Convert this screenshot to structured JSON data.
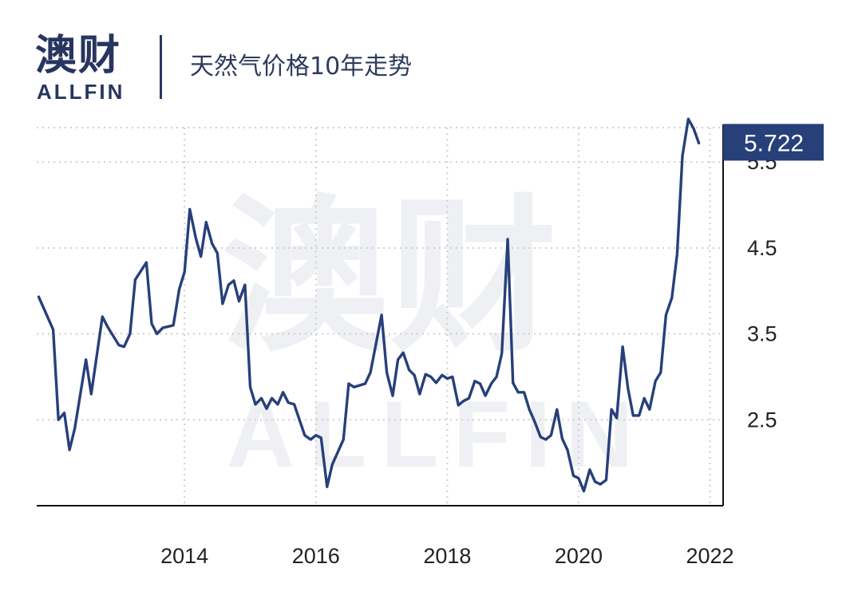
{
  "header": {
    "logo_cn": "澳财",
    "logo_en": "ALLFIN",
    "title": "天然气价格10年走势"
  },
  "watermark": {
    "cn": "澳财",
    "en": "ALLFIN"
  },
  "colors": {
    "line": "#27407a",
    "brand": "#27355f",
    "grid": "#cfcfcf",
    "badge": "#27407a"
  },
  "chart_data": {
    "type": "line",
    "title": "天然气价格10年走势",
    "xlabel": "",
    "ylabel": "",
    "x_ticks": [
      "2014",
      "2016",
      "2018",
      "2020",
      "2022"
    ],
    "y_ticks": [
      "2.5",
      "3.5",
      "4.5",
      "5.5"
    ],
    "ylim": [
      1.5,
      5.9
    ],
    "xlim": [
      2011.75,
      2022.2
    ],
    "grid": "horizontal dotted",
    "y_axis_side": "right",
    "last_value_label": "5.722",
    "series": [
      {
        "x": [
          2011.78,
          2012.0,
          2012.08,
          2012.17,
          2012.25,
          2012.33,
          2012.5,
          2012.58,
          2012.75,
          2012.83,
          2013.0,
          2013.08,
          2013.17,
          2013.25,
          2013.42,
          2013.5,
          2013.58,
          2013.67,
          2013.83,
          2013.92,
          2014.0,
          2014.08,
          2014.17,
          2014.25,
          2014.33,
          2014.42,
          2014.5,
          2014.58,
          2014.67,
          2014.75,
          2014.83,
          2014.92,
          2015.0,
          2015.08,
          2015.17,
          2015.25,
          2015.33,
          2015.42,
          2015.5,
          2015.58,
          2015.67,
          2015.75,
          2015.83,
          2015.92,
          2016.0,
          2016.08,
          2016.17,
          2016.25,
          2016.42,
          2016.5,
          2016.58,
          2016.75,
          2016.83,
          2017.0,
          2017.08,
          2017.17,
          2017.25,
          2017.33,
          2017.42,
          2017.5,
          2017.58,
          2017.67,
          2017.75,
          2017.83,
          2017.92,
          2018.0,
          2018.08,
          2018.17,
          2018.25,
          2018.33,
          2018.42,
          2018.5,
          2018.58,
          2018.67,
          2018.75,
          2018.83,
          2018.92,
          2019.0,
          2019.08,
          2019.17,
          2019.25,
          2019.33,
          2019.42,
          2019.5,
          2019.58,
          2019.67,
          2019.75,
          2019.83,
          2019.92,
          2020.0,
          2020.08,
          2020.17,
          2020.25,
          2020.33,
          2020.42,
          2020.5,
          2020.58,
          2020.67,
          2020.75,
          2020.83,
          2020.92,
          2021.0,
          2021.08,
          2021.17,
          2021.25,
          2021.33,
          2021.42,
          2021.5,
          2021.58,
          2021.67,
          2021.75,
          2021.83
        ],
        "y": [
          3.93,
          3.55,
          2.5,
          2.58,
          2.15,
          2.4,
          3.2,
          2.8,
          3.7,
          3.58,
          3.37,
          3.35,
          3.5,
          4.13,
          4.33,
          3.62,
          3.5,
          3.57,
          3.6,
          4.02,
          4.22,
          4.95,
          4.62,
          4.4,
          4.8,
          4.55,
          4.44,
          3.85,
          4.07,
          4.12,
          3.88,
          4.07,
          2.88,
          2.68,
          2.75,
          2.63,
          2.75,
          2.68,
          2.82,
          2.7,
          2.68,
          2.5,
          2.32,
          2.27,
          2.32,
          2.29,
          1.72,
          1.98,
          2.27,
          2.92,
          2.88,
          2.92,
          3.05,
          3.72,
          3.05,
          2.78,
          3.2,
          3.28,
          3.08,
          3.02,
          2.8,
          3.03,
          3.0,
          2.93,
          3.02,
          2.98,
          3.0,
          2.67,
          2.72,
          2.75,
          2.95,
          2.92,
          2.78,
          2.92,
          3.0,
          3.27,
          4.6,
          2.93,
          2.82,
          2.82,
          2.62,
          2.48,
          2.3,
          2.27,
          2.32,
          2.62,
          2.28,
          2.15,
          1.85,
          1.82,
          1.67,
          1.92,
          1.78,
          1.75,
          1.8,
          2.62,
          2.52,
          3.35,
          2.87,
          2.55,
          2.55,
          2.75,
          2.62,
          2.95,
          3.05,
          3.72,
          3.92,
          4.43,
          5.57,
          6.0,
          5.89,
          5.72
        ]
      }
    ]
  }
}
